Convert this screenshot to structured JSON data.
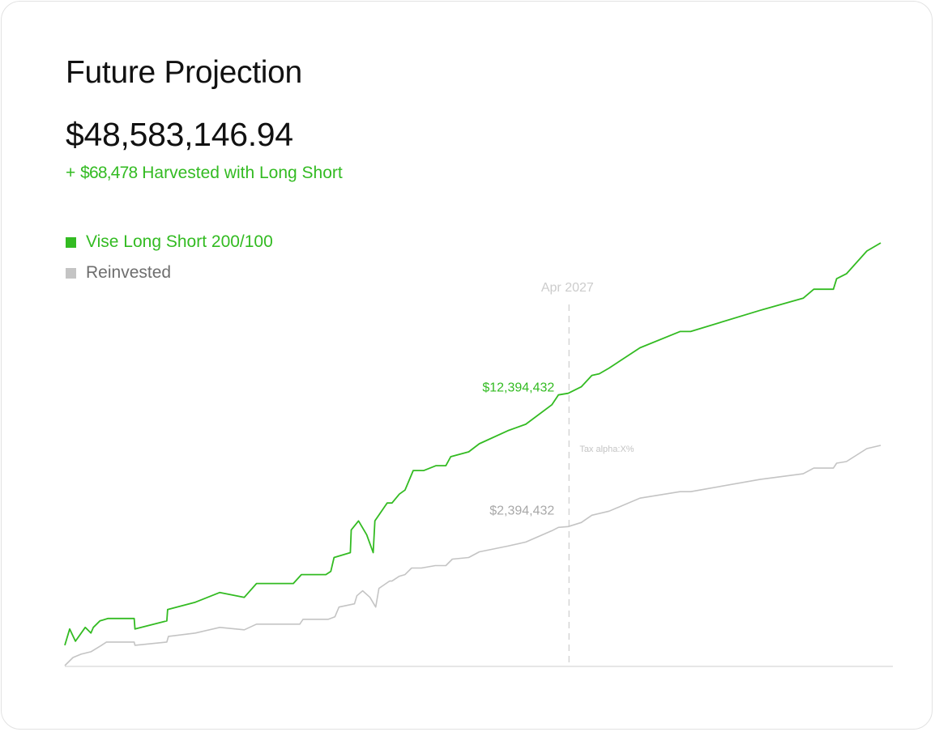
{
  "card": {
    "title": "Future Projection",
    "total_value": "$48,583,146.94",
    "harvest": {
      "prefix": "+ ",
      "amount": "$68,478",
      "suffix": " Harvested with Long Short"
    }
  },
  "legend": [
    {
      "label": "Vise Long Short 200/100",
      "color": "#33bb22",
      "text_color": "#33bb22"
    },
    {
      "label": "Reinvested",
      "color": "#c4c4c4",
      "text_color": "#6e6e6e"
    }
  ],
  "chart_data": {
    "type": "line",
    "x_range": [
      0,
      100
    ],
    "y_range": [
      0,
      52
    ],
    "grid": false,
    "legend_placement": "top-left",
    "series": [
      {
        "name": "Vise Long Short 200/100",
        "color": "#33bb22",
        "points": [
          [
            0,
            2.5
          ],
          [
            0.6,
            4.5
          ],
          [
            1.3,
            3.0
          ],
          [
            2.5,
            4.7
          ],
          [
            3.2,
            4.0
          ],
          [
            3.5,
            4.7
          ],
          [
            4.3,
            5.5
          ],
          [
            5.3,
            5.8
          ],
          [
            8.5,
            5.8
          ],
          [
            8.6,
            4.5
          ],
          [
            12.5,
            5.5
          ],
          [
            12.6,
            6.9
          ],
          [
            16,
            7.8
          ],
          [
            19,
            9.0
          ],
          [
            22,
            8.4
          ],
          [
            23.5,
            10.1
          ],
          [
            27.5,
            10.1
          ],
          [
            27.6,
            10.1
          ],
          [
            28,
            10.1
          ],
          [
            29,
            11.2
          ],
          [
            32,
            11.2
          ],
          [
            32.6,
            11.6
          ],
          [
            33,
            13.3
          ],
          [
            35,
            13.9
          ],
          [
            35.1,
            16.7
          ],
          [
            36,
            17.8
          ],
          [
            37,
            16.1
          ],
          [
            37.8,
            13.9
          ],
          [
            38,
            17.8
          ],
          [
            39.5,
            20.0
          ],
          [
            40.1,
            20.0
          ],
          [
            41,
            21.1
          ],
          [
            41.7,
            21.6
          ],
          [
            42.7,
            24.0
          ],
          [
            44,
            24.0
          ],
          [
            45.5,
            24.6
          ],
          [
            46.7,
            24.6
          ],
          [
            47.3,
            25.7
          ],
          [
            49.5,
            26.3
          ],
          [
            50.8,
            27.3
          ],
          [
            54.3,
            28.9
          ],
          [
            56.5,
            29.7
          ],
          [
            59.7,
            32.1
          ],
          [
            60.5,
            33.3
          ],
          [
            61.7,
            33.5
          ],
          [
            63.3,
            34.3
          ],
          [
            64.6,
            35.7
          ],
          [
            65.5,
            35.9
          ],
          [
            66.7,
            36.6
          ],
          [
            70.5,
            39.1
          ],
          [
            75.4,
            41.1
          ],
          [
            76.7,
            41.1
          ],
          [
            85.2,
            43.7
          ],
          [
            90.5,
            45.2
          ],
          [
            91.8,
            46.3
          ],
          [
            94.2,
            46.3
          ],
          [
            94.6,
            47.6
          ],
          [
            95.8,
            48.2
          ],
          [
            98.3,
            51.0
          ],
          [
            100,
            52.0
          ]
        ]
      },
      {
        "name": "Reinvested",
        "color": "#c4c4c4",
        "points": [
          [
            0,
            0
          ],
          [
            1,
            1
          ],
          [
            2,
            1.4
          ],
          [
            3.2,
            1.7
          ],
          [
            4.5,
            2.5
          ],
          [
            5.1,
            2.9
          ],
          [
            8.5,
            2.9
          ],
          [
            8.6,
            2.5
          ],
          [
            12.5,
            2.9
          ],
          [
            12.7,
            3.6
          ],
          [
            16,
            4.0
          ],
          [
            19,
            4.7
          ],
          [
            22,
            4.4
          ],
          [
            23.5,
            5.1
          ],
          [
            27.5,
            5.1
          ],
          [
            28.8,
            5.1
          ],
          [
            29.2,
            5.7
          ],
          [
            32.3,
            5.7
          ],
          [
            33.1,
            6.0
          ],
          [
            33.6,
            7.2
          ],
          [
            35.5,
            7.6
          ],
          [
            35.8,
            8.6
          ],
          [
            36.5,
            9.2
          ],
          [
            37.4,
            8.4
          ],
          [
            38.1,
            7.2
          ],
          [
            38.5,
            9.5
          ],
          [
            39.8,
            10.4
          ],
          [
            40.1,
            10.4
          ],
          [
            41,
            11.0
          ],
          [
            41.7,
            11.2
          ],
          [
            42.5,
            12.0
          ],
          [
            43.7,
            12.0
          ],
          [
            45.4,
            12.3
          ],
          [
            46.7,
            12.3
          ],
          [
            47.5,
            13.1
          ],
          [
            49.5,
            13.3
          ],
          [
            50.8,
            14.0
          ],
          [
            54.3,
            14.7
          ],
          [
            56.5,
            15.2
          ],
          [
            59.7,
            16.6
          ],
          [
            60.5,
            17.0
          ],
          [
            61.7,
            17.1
          ],
          [
            63.3,
            17.6
          ],
          [
            64.6,
            18.5
          ],
          [
            66.7,
            19.0
          ],
          [
            70.5,
            20.6
          ],
          [
            75.4,
            21.4
          ],
          [
            76.7,
            21.4
          ],
          [
            85.2,
            22.9
          ],
          [
            90.5,
            23.6
          ],
          [
            91.8,
            24.3
          ],
          [
            94.2,
            24.3
          ],
          [
            94.6,
            24.9
          ],
          [
            95.8,
            25.1
          ],
          [
            98.3,
            26.7
          ],
          [
            100,
            27.1
          ]
        ]
      }
    ],
    "marker": {
      "x": 61.8,
      "date_label": "Apr 2027",
      "series_labels": [
        "$12,394,432",
        "$2,394,432"
      ],
      "series_label_y": [
        33.7,
        18.6
      ],
      "annotation": "Tax alpha:X%",
      "annotation_y": 26.3
    }
  }
}
